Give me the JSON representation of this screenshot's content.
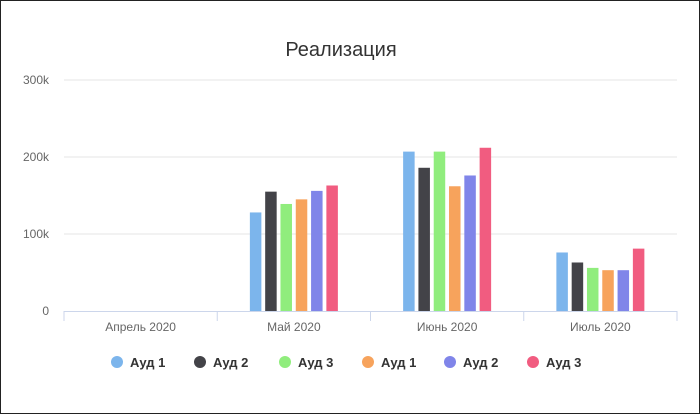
{
  "chart_data": {
    "type": "bar",
    "title": "Реализация",
    "categories": [
      "Апрель 2020",
      "Май 2020",
      "Июнь 2020",
      "Июль 2020"
    ],
    "ylim": [
      0,
      300000
    ],
    "y_ticks": [
      {
        "value": 0,
        "label": "0"
      },
      {
        "value": 100000,
        "label": "100k"
      },
      {
        "value": 200000,
        "label": "200k"
      },
      {
        "value": 300000,
        "label": "300k"
      }
    ],
    "grid": true,
    "legend_position": "bottom",
    "series": [
      {
        "name": "Ауд 1",
        "color": "#7cb5ec",
        "values": [
          0,
          128000,
          207000,
          76000
        ]
      },
      {
        "name": "Ауд 2",
        "color": "#434348",
        "values": [
          0,
          155000,
          186000,
          63000
        ]
      },
      {
        "name": "Ауд 3",
        "color": "#90ed7d",
        "values": [
          0,
          139000,
          207000,
          56000
        ]
      },
      {
        "name": "Ауд 1",
        "color": "#f7a35c",
        "values": [
          0,
          145000,
          162000,
          53000
        ]
      },
      {
        "name": "Ауд 2",
        "color": "#8085e9",
        "values": [
          0,
          156000,
          176000,
          53000
        ]
      },
      {
        "name": "Ауд 3",
        "color": "#f15c80",
        "values": [
          0,
          163000,
          212000,
          81000
        ]
      }
    ]
  }
}
